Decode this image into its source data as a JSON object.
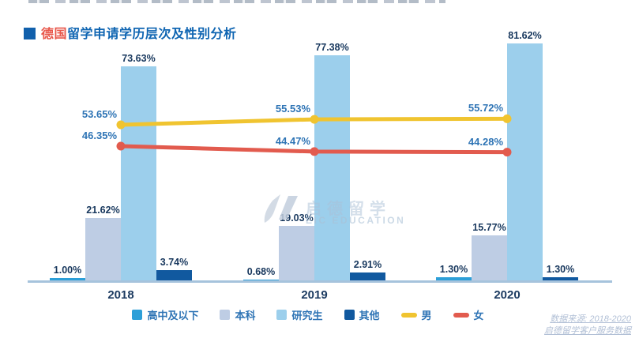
{
  "title": {
    "highlight": "德国",
    "rest": "留学申请学历层次及性别分析"
  },
  "watermark": {
    "name_cn": "启德留学",
    "name_en": "EIC EDUCATION"
  },
  "source_note": {
    "line1": "数据来源: 2018-2020",
    "line2": "启德留学客户服务数据"
  },
  "colors": {
    "title_blue": "#0f65b2",
    "title_red": "#e8564a",
    "bar_label": "#17375d",
    "line_label": "#2e74b5",
    "axis_line": "#a6c3dc"
  },
  "chart_data": {
    "type": "bar+line",
    "title": "德国留学申请学历层次及性别分析",
    "categories": [
      "2018",
      "2019",
      "2020"
    ],
    "bar_series": [
      {
        "name": "高中及以下",
        "color": "#2d9fd8",
        "values": [
          1.0,
          0.68,
          1.3
        ]
      },
      {
        "name": "本科",
        "color": "#becde4",
        "values": [
          21.62,
          19.03,
          15.77
        ]
      },
      {
        "name": "研究生",
        "color": "#9ccfec",
        "values": [
          73.63,
          77.38,
          81.62
        ]
      },
      {
        "name": "其他",
        "color": "#11599f",
        "values": [
          3.74,
          2.91,
          1.3
        ]
      }
    ],
    "line_series": [
      {
        "name": "男",
        "color": "#f0c430",
        "values": [
          53.65,
          55.53,
          55.72
        ]
      },
      {
        "name": "女",
        "color": "#e25b4e",
        "values": [
          46.35,
          44.47,
          44.28
        ]
      }
    ],
    "value_suffix": "%",
    "xlabel": "",
    "ylabel": "",
    "ylim": [
      0,
      84
    ],
    "grid": false,
    "legend_position": "bottom"
  }
}
